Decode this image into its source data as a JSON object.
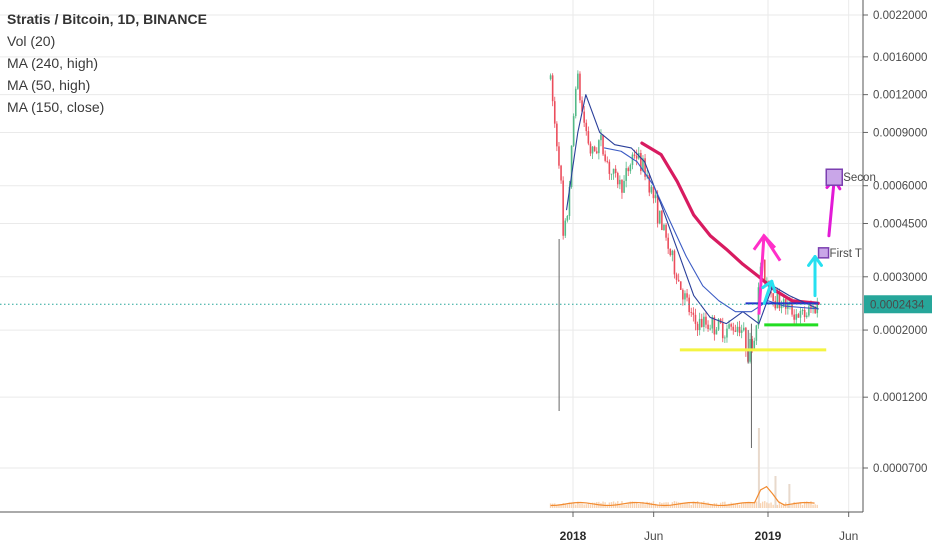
{
  "chart_data": {
    "type": "candlestick",
    "title": "Stratis / Bitcoin, 1D, BINANCE",
    "indicators": [
      "Vol (20)",
      "MA (240, high)",
      "MA (50, high)",
      "MA (150, close)"
    ],
    "y_scale": "log",
    "y_ticks": [
      "0.0022000",
      "0.0016000",
      "0.0012000",
      "0.0009000",
      "0.0006000",
      "0.0004500",
      "0.0003000",
      "0.0002000",
      "0.0001200",
      "0.0000700"
    ],
    "y_tick_values": [
      0.0022,
      0.0016,
      0.0012,
      0.0009,
      0.0006,
      0.00045,
      0.0003,
      0.0002,
      0.00012,
      7e-05
    ],
    "current_price_label": "0.0002434",
    "current_price": 0.0002434,
    "x_ticks": [
      {
        "label": "2018",
        "bold": true,
        "date": "2018-01-01"
      },
      {
        "label": "Jun",
        "bold": false,
        "date": "2018-06-01"
      },
      {
        "label": "2019",
        "bold": true,
        "date": "2019-01-01"
      },
      {
        "label": "Jun",
        "bold": false,
        "date": "2019-06-01"
      }
    ],
    "date_range": [
      "2017-11-20",
      "2019-04-05"
    ],
    "ohlc_anchors": [
      {
        "date": "2017-11-20",
        "close": 0.00135
      },
      {
        "date": "2017-11-28",
        "close": 0.00095
      },
      {
        "date": "2017-12-08",
        "close": 0.0007
      },
      {
        "date": "2017-12-14",
        "close": 0.00038
      },
      {
        "date": "2017-12-22",
        "close": 0.0005
      },
      {
        "date": "2017-12-30",
        "close": 0.0008
      },
      {
        "date": "2018-01-07",
        "close": 0.00145
      },
      {
        "date": "2018-01-18",
        "close": 0.00105
      },
      {
        "date": "2018-02-05",
        "close": 0.00075
      },
      {
        "date": "2018-02-20",
        "close": 0.00085
      },
      {
        "date": "2018-03-15",
        "close": 0.00065
      },
      {
        "date": "2018-04-05",
        "close": 0.0006
      },
      {
        "date": "2018-04-25",
        "close": 0.00078
      },
      {
        "date": "2018-05-20",
        "close": 0.00065
      },
      {
        "date": "2018-06-15",
        "close": 0.00045
      },
      {
        "date": "2018-07-15",
        "close": 0.0003
      },
      {
        "date": "2018-08-15",
        "close": 0.00021
      },
      {
        "date": "2018-09-15",
        "close": 0.00021
      },
      {
        "date": "2018-10-15",
        "close": 0.0002
      },
      {
        "date": "2018-11-10",
        "close": 0.00021
      },
      {
        "date": "2018-11-25",
        "close": 0.00017
      },
      {
        "date": "2018-12-08",
        "close": 0.00019
      },
      {
        "date": "2018-12-18",
        "close": 0.00033
      },
      {
        "date": "2018-12-28",
        "close": 0.0003
      },
      {
        "date": "2019-01-10",
        "close": 0.00026
      },
      {
        "date": "2019-02-05",
        "close": 0.00024
      },
      {
        "date": "2019-03-05",
        "close": 0.00022
      },
      {
        "date": "2019-04-05",
        "close": 0.000243
      }
    ],
    "moving_averages": [
      {
        "name": "MA (240, high)",
        "color": "#d81b60",
        "points": [
          [
            "2018-05-10",
            0.00083
          ],
          [
            "2018-06-15",
            0.00076
          ],
          [
            "2018-07-15",
            0.00062
          ],
          [
            "2018-08-15",
            0.00048
          ],
          [
            "2018-09-15",
            0.00041
          ],
          [
            "2018-10-15",
            0.00037
          ],
          [
            "2018-11-15",
            0.00033
          ],
          [
            "2018-12-15",
            0.0003
          ],
          [
            "2019-01-15",
            0.00027
          ],
          [
            "2019-02-15",
            0.00025
          ],
          [
            "2019-04-05",
            0.000245
          ]
        ]
      },
      {
        "name": "MA (50, high)",
        "color": "#2a3f9a",
        "points": [
          [
            "2017-12-20",
            0.0005
          ],
          [
            "2018-01-10",
            0.0009
          ],
          [
            "2018-01-25",
            0.0012
          ],
          [
            "2018-02-20",
            0.0009
          ],
          [
            "2018-03-20",
            0.00082
          ],
          [
            "2018-04-20",
            0.0008
          ],
          [
            "2018-05-15",
            0.00072
          ],
          [
            "2018-06-15",
            0.00052
          ],
          [
            "2018-07-15",
            0.00037
          ],
          [
            "2018-08-15",
            0.00026
          ],
          [
            "2018-09-15",
            0.00022
          ],
          [
            "2018-10-15",
            0.00021
          ],
          [
            "2018-11-15",
            0.00023
          ],
          [
            "2018-12-15",
            0.00021
          ],
          [
            "2019-01-10",
            0.00028
          ],
          [
            "2019-02-10",
            0.00026
          ],
          [
            "2019-04-05",
            0.000235
          ]
        ]
      },
      {
        "name": "MA (150, close)",
        "color": "#3b5bc4",
        "points": [
          [
            "2018-03-01",
            0.0008
          ],
          [
            "2018-04-01",
            0.00078
          ],
          [
            "2018-05-01",
            0.00072
          ],
          [
            "2018-06-01",
            0.0006
          ],
          [
            "2018-07-01",
            0.00046
          ],
          [
            "2018-08-01",
            0.00035
          ],
          [
            "2018-09-01",
            0.00028
          ],
          [
            "2018-10-01",
            0.00025
          ],
          [
            "2018-11-01",
            0.00023
          ],
          [
            "2018-12-01",
            0.00023
          ],
          [
            "2019-01-01",
            0.00025
          ],
          [
            "2019-02-01",
            0.00024
          ],
          [
            "2019-04-05",
            0.000235
          ]
        ]
      }
    ],
    "annotations": {
      "yellow_support": {
        "from": "2018-07-20",
        "to": "2019-04-20",
        "price": 0.000172,
        "color": "#f4f442"
      },
      "green_support": {
        "from": "2018-12-25",
        "to": "2019-04-05",
        "price": 0.000208,
        "color": "#22dd22"
      },
      "blue_level": {
        "from": "2018-11-20",
        "to": "2019-04-05",
        "price": 0.000245,
        "color": "#2233cc"
      },
      "pink_arrow": {
        "from": [
          "2018-12-15",
          0.000225
        ],
        "to": [
          "2019-01-05",
          0.00041
        ],
        "color": "#ff2fc9"
      },
      "cyan_arrow_left": {
        "from": [
          "2018-12-25",
          0.000245
        ],
        "to": [
          "2019-01-08",
          0.00029
        ],
        "color": "#26e0f0"
      },
      "cyan_arrow_right": {
        "from": [
          "2019-03-30",
          0.00026
        ],
        "to": [
          "2019-03-30",
          0.00035
        ],
        "color": "#26e0f0"
      },
      "magenta_arrow_second": {
        "from": [
          "2019-04-25",
          0.00041
        ],
        "to": [
          "2019-05-05",
          0.00063
        ],
        "color": "#e21ad6"
      },
      "first_target": {
        "date": "2019-04-15",
        "price": 0.00036,
        "label": "First T"
      },
      "second_target": {
        "date": "2019-05-05",
        "price": 0.00064,
        "label": "Secon"
      }
    },
    "volume": {
      "color": "#f4a261",
      "spikes": [
        {
          "date": "2018-12-15",
          "value": 1.0
        },
        {
          "date": "2019-01-15",
          "value": 0.4
        },
        {
          "date": "2019-02-10",
          "value": 0.3
        }
      ]
    }
  }
}
